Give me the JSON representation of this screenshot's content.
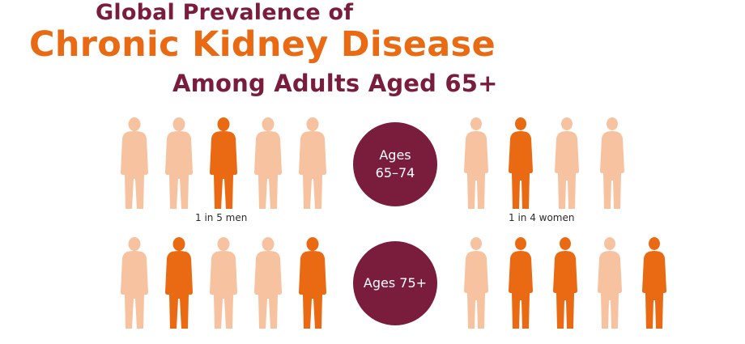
{
  "title": {
    "line1": "Global Prevalence of",
    "line2": "Chronic Kidney Disease",
    "line3": "Among Adults Aged 65+"
  },
  "colors": {
    "affected": "#e96a12",
    "unaffected": "#f7c2a0",
    "accent": "#7a1d3c"
  },
  "rows": [
    {
      "age_label": [
        "Ages",
        "65–74"
      ],
      "men": {
        "caption": "1 in 5 men",
        "affected": [
          false,
          false,
          true,
          false,
          false
        ]
      },
      "women": {
        "caption": "1 in 4 women",
        "affected": [
          false,
          true,
          false,
          false
        ]
      }
    },
    {
      "age_label": [
        "Ages 75+"
      ],
      "men": {
        "caption": "",
        "affected": [
          false,
          true,
          false,
          false,
          true
        ]
      },
      "women": {
        "caption": "",
        "affected": [
          false,
          true,
          true,
          false,
          true
        ]
      }
    }
  ]
}
